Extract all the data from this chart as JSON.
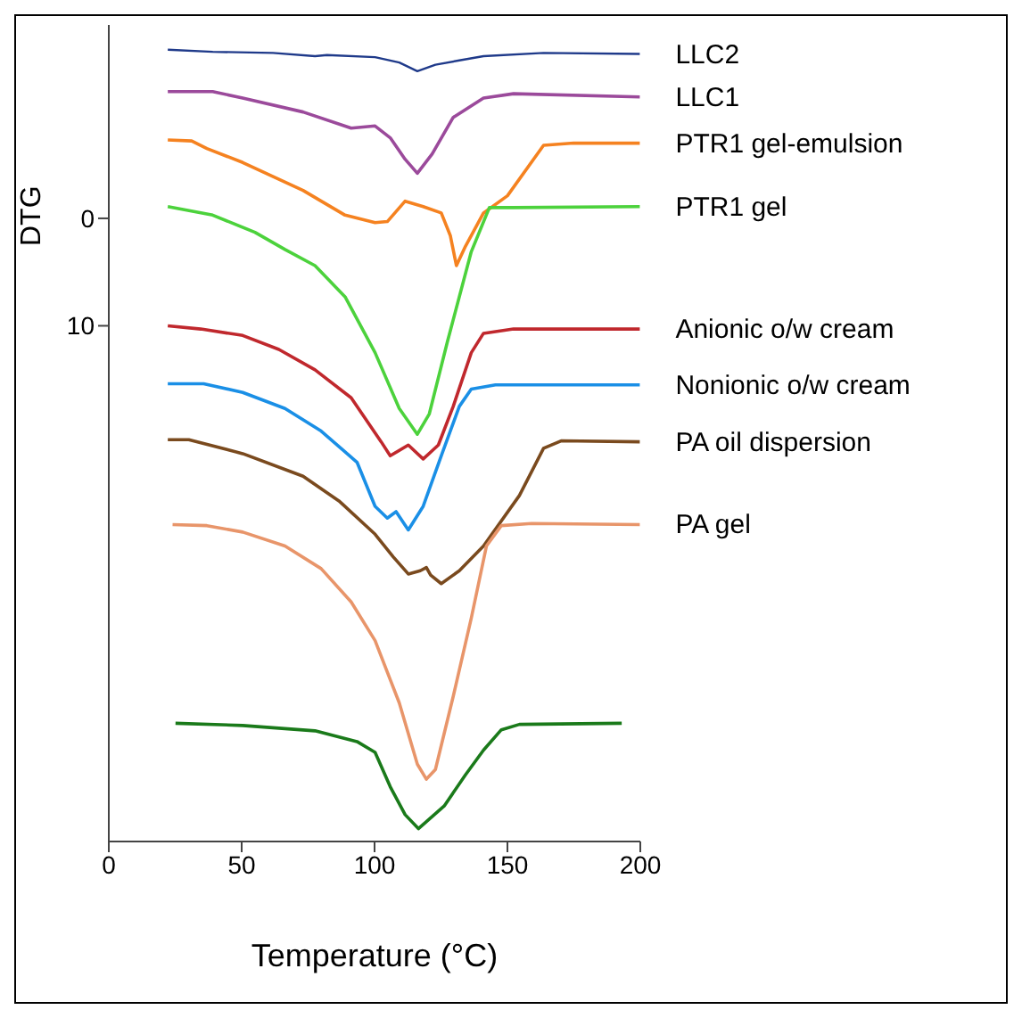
{
  "chart_data": {
    "type": "line",
    "xlabel": "Temperature (°C)",
    "ylabel": "DTG",
    "xlim": [
      0,
      200
    ],
    "xticks": [
      0,
      50,
      100,
      150,
      200
    ],
    "ylim": [
      58,
      -18
    ],
    "yticks": [
      0,
      10
    ],
    "grid": false,
    "legend": false,
    "marker": "none",
    "line_style": "solid",
    "series": [
      {
        "name": "LLC2",
        "color": "#1f3a8a",
        "x": [
          22.2,
          39.1,
          61.8,
          77.6,
          82.1,
          100.2,
          109.3,
          116.1,
          122.9,
          131.9,
          141,
          163.6,
          199.8
        ],
        "values": [
          -15.7,
          -15.5,
          -15.4,
          -15.1,
          -15.2,
          -15.0,
          -14.5,
          -13.7,
          -14.3,
          -14.7,
          -15.1,
          -15.4,
          -15.3
        ]
      },
      {
        "name": "LLC1",
        "color": "#9b4a9b",
        "x": [
          22.2,
          39.1,
          50.4,
          73.1,
          91.2,
          100.2,
          105.9,
          111.5,
          116.1,
          121.7,
          129.6,
          141,
          152.3,
          199.8
        ],
        "values": [
          -11.8,
          -11.8,
          -11.2,
          -9.9,
          -8.4,
          -8.6,
          -7.5,
          -5.5,
          -4.2,
          -6.0,
          -9.4,
          -11.2,
          -11.6,
          -11.3
        ]
      },
      {
        "name": "PTR1 gel-emulsion",
        "color": "#f58220",
        "x": [
          22.2,
          31.2,
          36.9,
          50.4,
          73.1,
          88.9,
          100.2,
          104.8,
          111.5,
          118.3,
          125.1,
          128.5,
          130.8,
          134.2,
          141,
          150,
          163.6,
          174.9,
          199.8
        ],
        "values": [
          -7.3,
          -7.2,
          -6.5,
          -5.2,
          -2.6,
          -0.3,
          0.4,
          0.3,
          -1.6,
          -1.1,
          -0.5,
          1.6,
          4.4,
          2.6,
          -0.5,
          -2.1,
          -6.8,
          -7.0,
          -7.0
        ]
      },
      {
        "name": "PTR1 gel",
        "color": "#4cd23c",
        "x": [
          22.2,
          39.1,
          55,
          66.3,
          77.6,
          88.9,
          100.2,
          109.3,
          116.1,
          120.6,
          127.4,
          136.4,
          143.2,
          152.3,
          199.8
        ],
        "values": [
          -1.1,
          -0.3,
          1.3,
          2.9,
          4.4,
          7.3,
          12.5,
          17.7,
          20.1,
          18.2,
          11.5,
          3.1,
          -1.0,
          -1.0,
          -1.1
        ]
      },
      {
        "name": "Anionic o/w cream",
        "color": "#c0282d",
        "x": [
          22.2,
          34.6,
          50.4,
          64,
          77.6,
          91.2,
          102.5,
          105.9,
          112.7,
          118.3,
          124,
          129.6,
          136.4,
          141,
          152.3,
          199.8
        ],
        "values": [
          10.0,
          10.3,
          10.9,
          12.2,
          14.1,
          16.7,
          20.8,
          22.1,
          21.1,
          22.4,
          21.1,
          17.5,
          12.5,
          10.7,
          10.3,
          10.3
        ]
      },
      {
        "name": "Nonionic o/w cream",
        "color": "#1a8fe6",
        "x": [
          22.2,
          35.7,
          50.4,
          66.3,
          79.9,
          93.4,
          100.2,
          104.8,
          108.1,
          112.7,
          118.3,
          125.1,
          131.9,
          136.4,
          145.5,
          199.8
        ],
        "values": [
          15.4,
          15.4,
          16.2,
          17.7,
          19.8,
          22.7,
          26.8,
          27.9,
          27.3,
          29.0,
          26.8,
          22.1,
          17.5,
          15.9,
          15.5,
          15.5
        ]
      },
      {
        "name": "PA oil dispersion",
        "color": "#7a4a1e",
        "x": [
          22.2,
          30.1,
          50.4,
          73.1,
          86.6,
          100.2,
          107,
          112.7,
          117.2,
          119.5,
          121.1,
          125.1,
          131.9,
          141,
          154.5,
          163.6,
          170.4,
          199.8
        ],
        "values": [
          20.6,
          20.6,
          21.9,
          24.0,
          26.3,
          29.4,
          31.5,
          33.1,
          32.8,
          32.5,
          33.2,
          34.0,
          32.8,
          30.5,
          25.8,
          21.4,
          20.7,
          20.8
        ]
      },
      {
        "name": "PA gel",
        "color": "#e8956a",
        "x": [
          24,
          36.9,
          50.4,
          66.3,
          79.9,
          91.2,
          100.2,
          109.3,
          116.1,
          119.5,
          122.9,
          129.6,
          136.4,
          142.1,
          147.7,
          159.1,
          199.8
        ],
        "values": [
          28.5,
          28.6,
          29.2,
          30.5,
          32.6,
          35.7,
          39.3,
          45.1,
          50.8,
          52.2,
          51.3,
          44.5,
          37.2,
          30.5,
          28.6,
          28.4,
          28.5
        ]
      },
      {
        "color": "#1a7a1a",
        "x": [
          25.1,
          50.4,
          77.6,
          93.4,
          100.2,
          105.9,
          111.5,
          116.5,
          126.2,
          134.2,
          141,
          147.7,
          154.5,
          193
        ],
        "values": [
          47.0,
          47.2,
          47.7,
          48.7,
          49.7,
          52.9,
          55.5,
          56.8,
          54.7,
          51.8,
          49.5,
          47.6,
          47.1,
          47.0
        ]
      }
    ]
  }
}
